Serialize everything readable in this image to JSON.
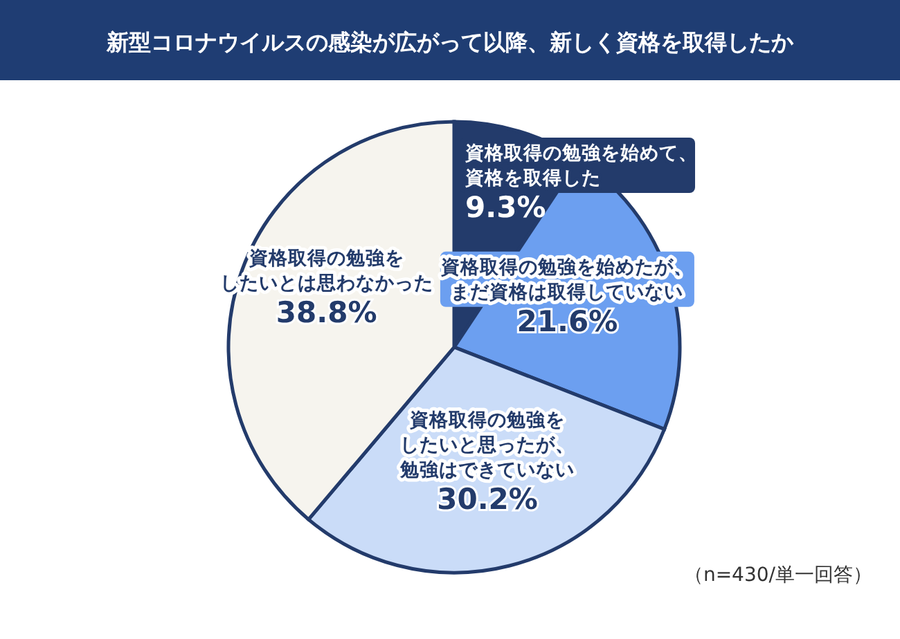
{
  "chart_data": {
    "type": "pie",
    "title": "新型コロナウイルスの感染が広がって以降、新しく資格を取得したか",
    "categories": [
      "資格取得の勉強を始めて、資格を取得した",
      "資格取得の勉強を始めたが、まだ資格は取得していない",
      "資格取得の勉強をしたいと思ったが、勉強はできていない",
      "資格取得の勉強をしたいとは思わなかった"
    ],
    "values": [
      9.3,
      21.6,
      30.2,
      38.8
    ],
    "colors": [
      "#233b6b",
      "#6c9ff0",
      "#cadcf8",
      "#f6f4ee"
    ],
    "value_labels": [
      "9.3%",
      "21.6%",
      "30.2%",
      "38.8%"
    ],
    "annotations": [
      "（n=430/単一回答）"
    ]
  }
}
